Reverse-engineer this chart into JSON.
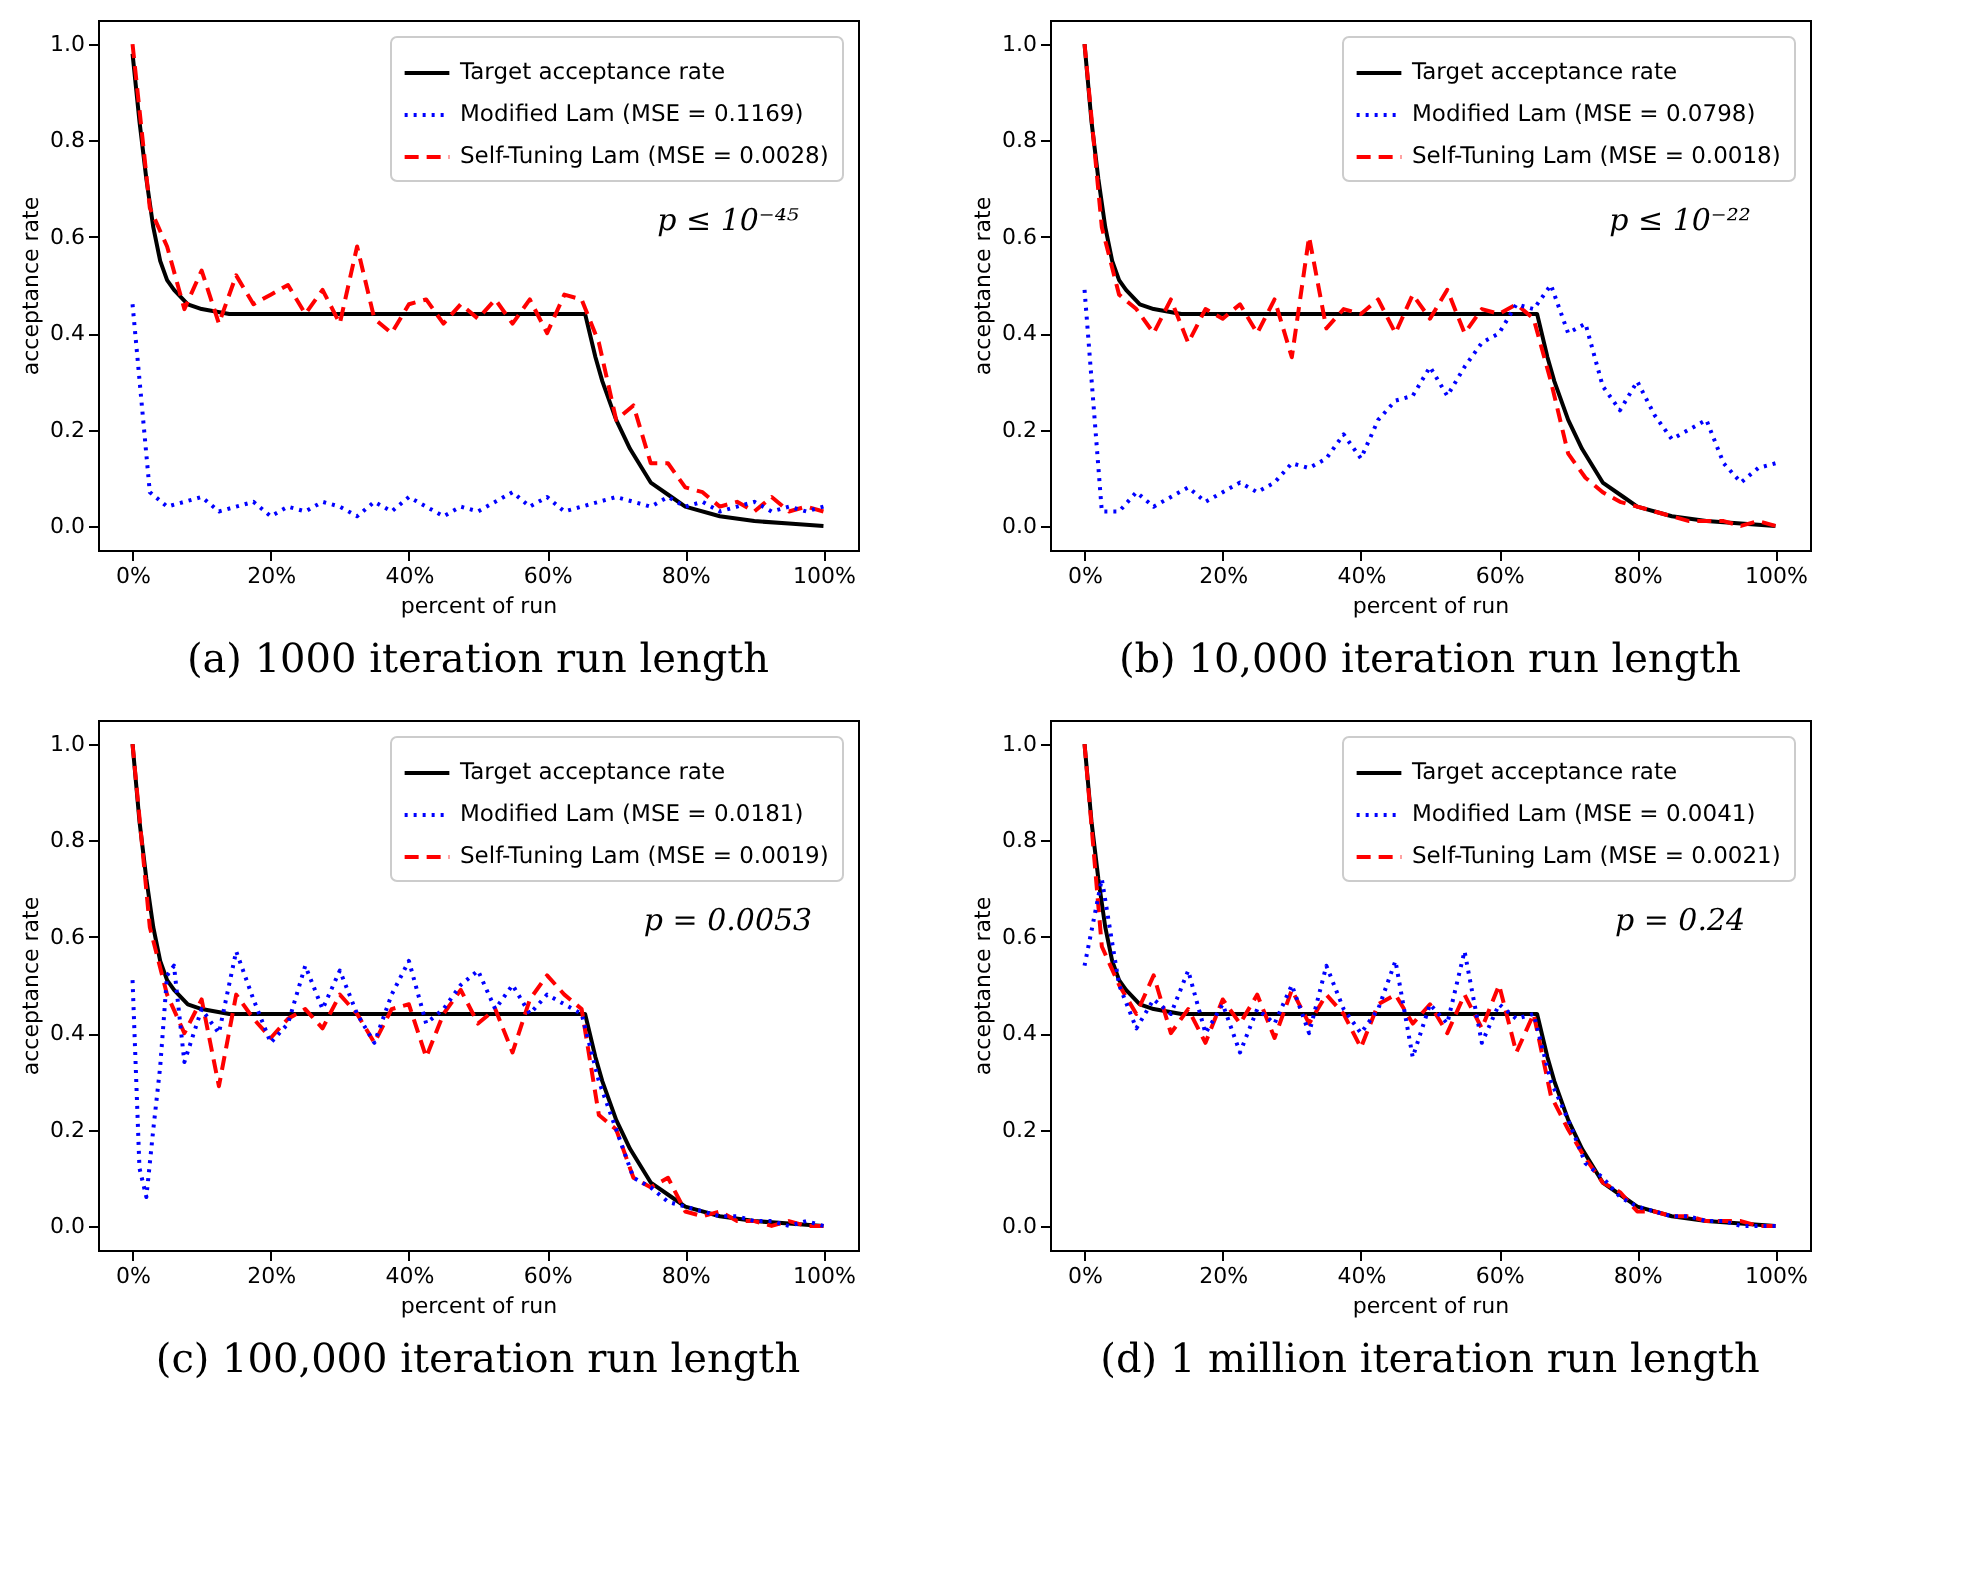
{
  "chart_data": [
    {
      "type": "line",
      "title": "(a) 1000 iteration run length",
      "xlabel": "percent of run",
      "ylabel": "acceptance rate",
      "annotations": [
        "p ≤ 10⁻⁴⁵"
      ],
      "legend": "top right",
      "grid": false,
      "xlim": [
        -5,
        105
      ],
      "ylim": [
        -0.05,
        1.05
      ],
      "xticks": [
        {
          "value": 0,
          "label": "0%"
        },
        {
          "value": 20,
          "label": "20%"
        },
        {
          "value": 40,
          "label": "40%"
        },
        {
          "value": 60,
          "label": "60%"
        },
        {
          "value": 80,
          "label": "80%"
        },
        {
          "value": 100,
          "label": "100%"
        }
      ],
      "yticks": [
        {
          "value": 0,
          "label": "0.0"
        },
        {
          "value": 0.2,
          "label": "0.2"
        },
        {
          "value": 0.4,
          "label": "0.4"
        },
        {
          "value": 0.6,
          "label": "0.6"
        },
        {
          "value": 0.8,
          "label": "0.8"
        },
        {
          "value": 1,
          "label": "1.0"
        }
      ],
      "x": [
        0,
        2.5,
        5,
        7.5,
        10,
        12.5,
        15,
        17.5,
        20,
        22.5,
        25,
        27.5,
        30,
        32.5,
        35,
        37.5,
        40,
        42.5,
        45,
        47.5,
        50,
        52.5,
        55,
        57.5,
        60,
        62.5,
        65,
        67.5,
        70,
        72.5,
        75,
        77.5,
        80,
        82.5,
        85,
        87.5,
        90,
        92.5,
        95,
        97.5,
        100
      ],
      "series": [
        {
          "name": "Target acceptance rate",
          "color": "#000000",
          "line_style": "solid",
          "x": [
            0,
            1,
            2,
            3,
            4,
            5,
            6,
            8,
            10,
            14,
            65.5,
            67,
            68,
            70,
            72,
            75,
            78,
            80,
            85,
            90,
            95,
            100
          ],
          "values": [
            0.98,
            0.84,
            0.72,
            0.62,
            0.55,
            0.51,
            0.49,
            0.46,
            0.45,
            0.44,
            0.44,
            0.35,
            0.3,
            0.22,
            0.16,
            0.09,
            0.06,
            0.04,
            0.02,
            0.01,
            0.005,
            0
          ]
        },
        {
          "name": "Modified Lam (MSE = 0.1169)",
          "color": "#0000ff",
          "line_style": "dotted",
          "values": [
            0.46,
            0.07,
            0.04,
            0.05,
            0.06,
            0.03,
            0.04,
            0.05,
            0.02,
            0.04,
            0.03,
            0.05,
            0.04,
            0.02,
            0.05,
            0.03,
            0.06,
            0.04,
            0.02,
            0.04,
            0.03,
            0.05,
            0.07,
            0.04,
            0.06,
            0.03,
            0.04,
            0.05,
            0.06,
            0.05,
            0.04,
            0.06,
            0.04,
            0.05,
            0.03,
            0.04,
            0.05,
            0.03,
            0.04,
            0.03,
            0.04
          ]
        },
        {
          "name": "Self-Tuning Lam (MSE = 0.0028)",
          "color": "#ff0000",
          "line_style": "dashed",
          "values": [
            1.0,
            0.66,
            0.58,
            0.45,
            0.53,
            0.42,
            0.52,
            0.46,
            0.48,
            0.5,
            0.44,
            0.49,
            0.42,
            0.58,
            0.43,
            0.4,
            0.46,
            0.47,
            0.42,
            0.46,
            0.43,
            0.47,
            0.42,
            0.47,
            0.4,
            0.48,
            0.47,
            0.38,
            0.22,
            0.25,
            0.13,
            0.13,
            0.08,
            0.07,
            0.04,
            0.05,
            0.03,
            0.06,
            0.03,
            0.04,
            0.03
          ]
        }
      ]
    },
    {
      "type": "line",
      "title": "(b) 10,000 iteration run length",
      "xlabel": "percent of run",
      "ylabel": "acceptance rate",
      "annotations": [
        "p ≤ 10⁻²²"
      ],
      "legend": "top right",
      "grid": false,
      "xlim": [
        -5,
        105
      ],
      "ylim": [
        -0.05,
        1.05
      ],
      "xticks": [
        {
          "value": 0,
          "label": "0%"
        },
        {
          "value": 20,
          "label": "20%"
        },
        {
          "value": 40,
          "label": "40%"
        },
        {
          "value": 60,
          "label": "60%"
        },
        {
          "value": 80,
          "label": "80%"
        },
        {
          "value": 100,
          "label": "100%"
        }
      ],
      "yticks": [
        {
          "value": 0,
          "label": "0.0"
        },
        {
          "value": 0.2,
          "label": "0.2"
        },
        {
          "value": 0.4,
          "label": "0.4"
        },
        {
          "value": 0.6,
          "label": "0.6"
        },
        {
          "value": 0.8,
          "label": "0.8"
        },
        {
          "value": 1,
          "label": "1.0"
        }
      ],
      "x": [
        0,
        2.5,
        5,
        7.5,
        10,
        12.5,
        15,
        17.5,
        20,
        22.5,
        25,
        27.5,
        30,
        32.5,
        35,
        37.5,
        40,
        42.5,
        45,
        47.5,
        50,
        52.5,
        55,
        57.5,
        60,
        62.5,
        65,
        67.5,
        70,
        72.5,
        75,
        77.5,
        80,
        82.5,
        85,
        87.5,
        90,
        92.5,
        95,
        97.5,
        100
      ],
      "series": [
        {
          "name": "Target acceptance rate",
          "color": "#000000",
          "line_style": "solid",
          "x": [
            0,
            1,
            2,
            3,
            4,
            5,
            6,
            8,
            10,
            14,
            65.5,
            67,
            68,
            70,
            72,
            75,
            78,
            80,
            85,
            90,
            95,
            100
          ],
          "values": [
            1.0,
            0.84,
            0.72,
            0.62,
            0.55,
            0.51,
            0.49,
            0.46,
            0.45,
            0.44,
            0.44,
            0.35,
            0.3,
            0.22,
            0.16,
            0.09,
            0.06,
            0.04,
            0.02,
            0.01,
            0.005,
            0
          ]
        },
        {
          "name": "Modified Lam (MSE = 0.0798)",
          "color": "#0000ff",
          "line_style": "dotted",
          "values": [
            0.49,
            0.03,
            0.03,
            0.07,
            0.04,
            0.06,
            0.08,
            0.05,
            0.07,
            0.09,
            0.07,
            0.09,
            0.13,
            0.12,
            0.14,
            0.19,
            0.14,
            0.22,
            0.26,
            0.27,
            0.33,
            0.27,
            0.33,
            0.38,
            0.4,
            0.46,
            0.45,
            0.5,
            0.4,
            0.42,
            0.29,
            0.24,
            0.3,
            0.23,
            0.18,
            0.2,
            0.22,
            0.13,
            0.09,
            0.12,
            0.13
          ]
        },
        {
          "name": "Self-Tuning Lam (MSE = 0.0018)",
          "color": "#ff0000",
          "line_style": "dashed",
          "values": [
            1.0,
            0.62,
            0.48,
            0.45,
            0.4,
            0.47,
            0.38,
            0.45,
            0.43,
            0.46,
            0.4,
            0.47,
            0.35,
            0.6,
            0.41,
            0.45,
            0.44,
            0.47,
            0.4,
            0.48,
            0.43,
            0.49,
            0.4,
            0.45,
            0.44,
            0.46,
            0.43,
            0.3,
            0.15,
            0.1,
            0.07,
            0.05,
            0.04,
            0.03,
            0.02,
            0.01,
            0.01,
            0.01,
            0.0,
            0.01,
            0.0
          ]
        }
      ]
    },
    {
      "type": "line",
      "title": "(c) 100,000 iteration run length",
      "xlabel": "percent of run",
      "ylabel": "acceptance rate",
      "annotations": [
        "p = 0.0053"
      ],
      "legend": "top right",
      "grid": false,
      "xlim": [
        -5,
        105
      ],
      "ylim": [
        -0.05,
        1.05
      ],
      "xticks": [
        {
          "value": 0,
          "label": "0%"
        },
        {
          "value": 20,
          "label": "20%"
        },
        {
          "value": 40,
          "label": "40%"
        },
        {
          "value": 60,
          "label": "60%"
        },
        {
          "value": 80,
          "label": "80%"
        },
        {
          "value": 100,
          "label": "100%"
        }
      ],
      "yticks": [
        {
          "value": 0,
          "label": "0.0"
        },
        {
          "value": 0.2,
          "label": "0.2"
        },
        {
          "value": 0.4,
          "label": "0.4"
        },
        {
          "value": 0.6,
          "label": "0.6"
        },
        {
          "value": 0.8,
          "label": "0.8"
        },
        {
          "value": 1,
          "label": "1.0"
        }
      ],
      "x": [
        0,
        2.5,
        5,
        7.5,
        10,
        12.5,
        15,
        17.5,
        20,
        22.5,
        25,
        27.5,
        30,
        32.5,
        35,
        37.5,
        40,
        42.5,
        45,
        47.5,
        50,
        52.5,
        55,
        57.5,
        60,
        62.5,
        65,
        67.5,
        70,
        72.5,
        75,
        77.5,
        80,
        82.5,
        85,
        87.5,
        90,
        92.5,
        95,
        97.5,
        100
      ],
      "series": [
        {
          "name": "Target acceptance rate",
          "color": "#000000",
          "line_style": "solid",
          "x": [
            0,
            1,
            2,
            3,
            4,
            5,
            6,
            8,
            10,
            14,
            65.5,
            67,
            68,
            70,
            72,
            75,
            78,
            80,
            85,
            90,
            95,
            100
          ],
          "values": [
            1.0,
            0.84,
            0.72,
            0.62,
            0.55,
            0.51,
            0.49,
            0.46,
            0.45,
            0.44,
            0.44,
            0.35,
            0.3,
            0.22,
            0.16,
            0.09,
            0.06,
            0.04,
            0.02,
            0.01,
            0.005,
            0
          ]
        },
        {
          "name": "Modified Lam (MSE = 0.0181)",
          "color": "#0000ff",
          "line_style": "dotted",
          "x": [
            0,
            1,
            2,
            3,
            4,
            5,
            6,
            7.5,
            10,
            12.5,
            15,
            17.5,
            20,
            22.5,
            25,
            27.5,
            30,
            32.5,
            35,
            37.5,
            40,
            42.5,
            45,
            47.5,
            50,
            52.5,
            55,
            57.5,
            60,
            62.5,
            65,
            67.5,
            70,
            72.5,
            75,
            77.5,
            80,
            82.5,
            85,
            87.5,
            90,
            92.5,
            95,
            97.5,
            100
          ],
          "values": [
            0.51,
            0.12,
            0.06,
            0.2,
            0.33,
            0.52,
            0.54,
            0.34,
            0.45,
            0.4,
            0.57,
            0.47,
            0.38,
            0.42,
            0.54,
            0.45,
            0.53,
            0.44,
            0.38,
            0.48,
            0.55,
            0.42,
            0.45,
            0.5,
            0.53,
            0.45,
            0.5,
            0.44,
            0.48,
            0.46,
            0.44,
            0.3,
            0.2,
            0.1,
            0.08,
            0.05,
            0.04,
            0.03,
            0.02,
            0.02,
            0.01,
            0.01,
            0.0,
            0.01,
            0.0
          ]
        },
        {
          "name": "Self-Tuning Lam (MSE = 0.0019)",
          "color": "#ff0000",
          "line_style": "dashed",
          "values": [
            1.0,
            0.62,
            0.48,
            0.4,
            0.47,
            0.29,
            0.48,
            0.43,
            0.39,
            0.43,
            0.45,
            0.41,
            0.48,
            0.44,
            0.38,
            0.45,
            0.46,
            0.35,
            0.44,
            0.49,
            0.42,
            0.45,
            0.36,
            0.47,
            0.52,
            0.48,
            0.45,
            0.23,
            0.2,
            0.1,
            0.08,
            0.1,
            0.03,
            0.02,
            0.03,
            0.01,
            0.01,
            0.0,
            0.01,
            0.0,
            0.0
          ]
        }
      ]
    },
    {
      "type": "line",
      "title": "(d) 1 million iteration run length",
      "xlabel": "percent of run",
      "ylabel": "acceptance rate",
      "annotations": [
        "p = 0.24"
      ],
      "legend": "top right",
      "grid": false,
      "xlim": [
        -5,
        105
      ],
      "ylim": [
        -0.05,
        1.05
      ],
      "xticks": [
        {
          "value": 0,
          "label": "0%"
        },
        {
          "value": 20,
          "label": "20%"
        },
        {
          "value": 40,
          "label": "40%"
        },
        {
          "value": 60,
          "label": "60%"
        },
        {
          "value": 80,
          "label": "80%"
        },
        {
          "value": 100,
          "label": "100%"
        }
      ],
      "yticks": [
        {
          "value": 0,
          "label": "0.0"
        },
        {
          "value": 0.2,
          "label": "0.2"
        },
        {
          "value": 0.4,
          "label": "0.4"
        },
        {
          "value": 0.6,
          "label": "0.6"
        },
        {
          "value": 0.8,
          "label": "0.8"
        },
        {
          "value": 1,
          "label": "1.0"
        }
      ],
      "x": [
        0,
        2.5,
        5,
        7.5,
        10,
        12.5,
        15,
        17.5,
        20,
        22.5,
        25,
        27.5,
        30,
        32.5,
        35,
        37.5,
        40,
        42.5,
        45,
        47.5,
        50,
        52.5,
        55,
        57.5,
        60,
        62.5,
        65,
        67.5,
        70,
        72.5,
        75,
        77.5,
        80,
        82.5,
        85,
        87.5,
        90,
        92.5,
        95,
        97.5,
        100
      ],
      "series": [
        {
          "name": "Target acceptance rate",
          "color": "#000000",
          "line_style": "solid",
          "x": [
            0,
            1,
            2,
            3,
            4,
            5,
            6,
            8,
            10,
            14,
            65.5,
            67,
            68,
            70,
            72,
            75,
            78,
            80,
            85,
            90,
            95,
            100
          ],
          "values": [
            1.0,
            0.84,
            0.72,
            0.62,
            0.55,
            0.51,
            0.49,
            0.46,
            0.45,
            0.44,
            0.44,
            0.35,
            0.3,
            0.22,
            0.16,
            0.09,
            0.06,
            0.04,
            0.02,
            0.01,
            0.005,
            0
          ]
        },
        {
          "name": "Modified Lam (MSE = 0.0041)",
          "color": "#0000ff",
          "line_style": "dotted",
          "values": [
            0.54,
            0.72,
            0.5,
            0.41,
            0.47,
            0.44,
            0.53,
            0.4,
            0.46,
            0.36,
            0.45,
            0.42,
            0.5,
            0.4,
            0.54,
            0.45,
            0.4,
            0.45,
            0.55,
            0.35,
            0.46,
            0.42,
            0.57,
            0.38,
            0.46,
            0.43,
            0.44,
            0.3,
            0.22,
            0.13,
            0.1,
            0.06,
            0.04,
            0.03,
            0.02,
            0.02,
            0.01,
            0.01,
            0.0,
            0.0,
            0.0
          ]
        },
        {
          "name": "Self-Tuning Lam (MSE = 0.0021)",
          "color": "#ff0000",
          "line_style": "dashed",
          "values": [
            1.0,
            0.58,
            0.5,
            0.44,
            0.52,
            0.4,
            0.45,
            0.38,
            0.47,
            0.42,
            0.48,
            0.39,
            0.49,
            0.42,
            0.48,
            0.44,
            0.37,
            0.46,
            0.48,
            0.42,
            0.46,
            0.4,
            0.48,
            0.41,
            0.5,
            0.36,
            0.44,
            0.27,
            0.2,
            0.14,
            0.09,
            0.07,
            0.03,
            0.03,
            0.02,
            0.02,
            0.01,
            0.01,
            0.01,
            0.0,
            0.0
          ]
        }
      ]
    }
  ]
}
